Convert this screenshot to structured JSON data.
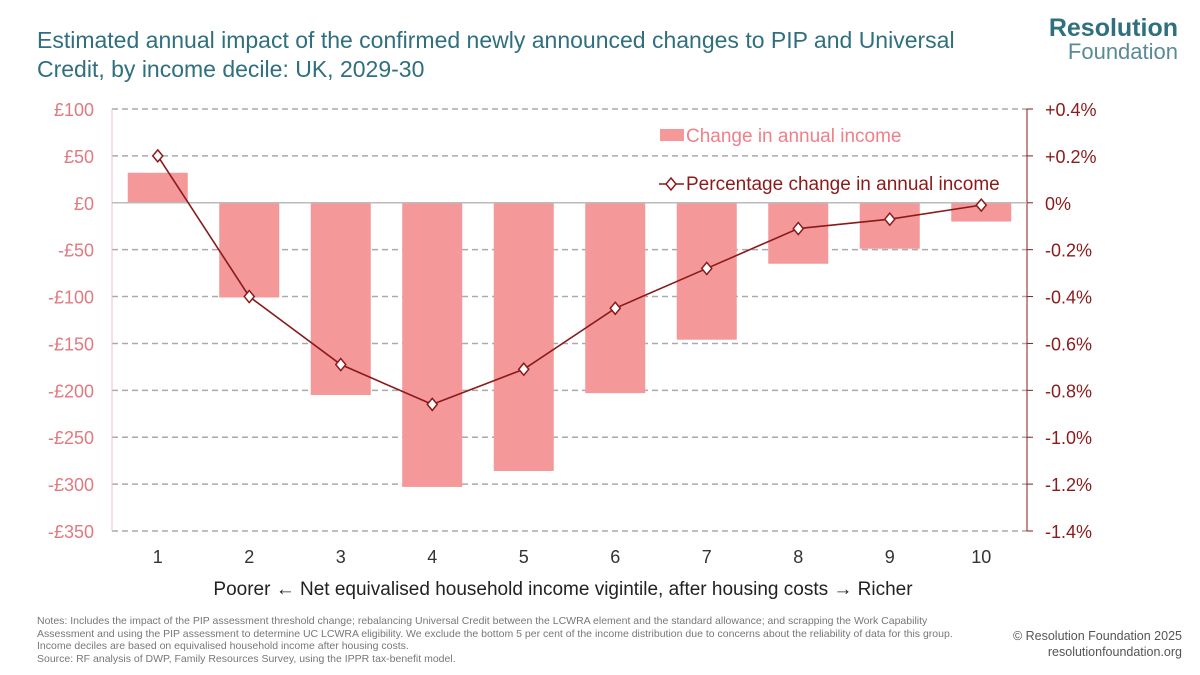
{
  "title": "Estimated annual impact of the confirmed newly announced changes to PIP and Universal Credit, by income decile: UK, 2029-30",
  "logo": {
    "line1": "Resolution",
    "line2": "Foundation"
  },
  "notes": "Notes: Includes the impact of the PIP assessment threshold change; rebalancing Universal Credit between the LCWRA element and the standard allowance; and scrapping the Work Capability Assessment and using the PIP assessment to determine UC LCWRA eligibility. We exclude the bottom 5 per cent of the income distribution due to concerns about the reliability of data for this group. Income deciles are based on equivalised household income after housing costs.",
  "source": "Source: RF analysis of DWP, Family Resources Survey, using the IPPR tax-benefit model.",
  "credit": {
    "copyright": "© Resolution Foundation 2025",
    "url": "resolutionfoundation.org"
  },
  "chart_data": {
    "type": "bar",
    "categories": [
      "1",
      "2",
      "3",
      "4",
      "5",
      "6",
      "7",
      "8",
      "9",
      "10"
    ],
    "xlabel": "Poorer ← Net equivalised household income vigintile, after housing costs → Richer",
    "series": [
      {
        "name": "Change in annual income",
        "type": "bar",
        "axis": "left",
        "color": "#f4989a",
        "values": [
          32,
          -101,
          -205,
          -303,
          -286,
          -203,
          -146,
          -65,
          -49,
          -20
        ]
      },
      {
        "name": "Percentage change in annual income",
        "type": "line",
        "axis": "right",
        "color": "#8b1a1a",
        "values": [
          0.2,
          -0.4,
          -0.69,
          -0.86,
          -0.71,
          -0.45,
          -0.28,
          -0.11,
          -0.07,
          -0.01
        ]
      }
    ],
    "left_axis": {
      "ylim": [
        -350,
        100
      ],
      "ticks": [
        100,
        50,
        0,
        -50,
        -100,
        -150,
        -200,
        -250,
        -300,
        -350
      ],
      "tick_labels": [
        "£100",
        "£50",
        "£0",
        "-£50",
        "-£100",
        "-£150",
        "-£200",
        "-£250",
        "-£300",
        "-£350"
      ]
    },
    "right_axis": {
      "ylim": [
        -1.4,
        0.4
      ],
      "ticks": [
        0.4,
        0.2,
        0,
        -0.2,
        -0.4,
        -0.6,
        -0.8,
        -1.0,
        -1.2,
        -1.4
      ],
      "tick_labels": [
        "+0.4%",
        "+0.2%",
        "0%",
        "-0.2%",
        "-0.4%",
        "-0.6%",
        "-0.8%",
        "-1.0%",
        "-1.2%",
        "-1.4%"
      ]
    },
    "grid": true,
    "legend": "top-right"
  }
}
